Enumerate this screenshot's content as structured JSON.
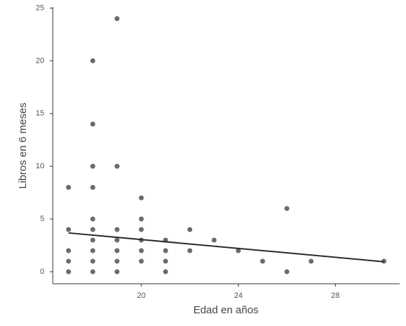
{
  "chart_data": {
    "type": "scatter",
    "x_label": "Edad en años",
    "y_label": "Libros en 6 meses",
    "x": [
      17,
      17,
      17,
      17,
      17,
      18,
      18,
      18,
      18,
      18,
      18,
      18,
      18,
      18,
      18,
      19,
      19,
      19,
      19,
      19,
      19,
      19,
      20,
      20,
      20,
      20,
      20,
      20,
      21,
      21,
      21,
      21,
      22,
      22,
      23,
      24,
      25,
      26,
      26,
      27,
      30
    ],
    "y": [
      8,
      4,
      2,
      1,
      0,
      20,
      14,
      10,
      8,
      5,
      4,
      3,
      2,
      1,
      0,
      24,
      10,
      4,
      3,
      2,
      1,
      0,
      7,
      5,
      4,
      3,
      2,
      1,
      3,
      2,
      1,
      0,
      4,
      2,
      3,
      2,
      1,
      6,
      0,
      1,
      1
    ],
    "color": "#3a3a3a",
    "trend_line": {
      "x": [
        17,
        30
      ],
      "y": [
        3.68,
        0.95
      ],
      "color": "#2b2b2b"
    },
    "xlim": [
      16.35,
      30.65
    ],
    "ylim": [
      -1.14,
      25.1
    ],
    "xticks": [
      20,
      24,
      28
    ],
    "yticks": [
      0,
      5,
      10,
      15,
      20,
      25
    ],
    "grid": false
  }
}
